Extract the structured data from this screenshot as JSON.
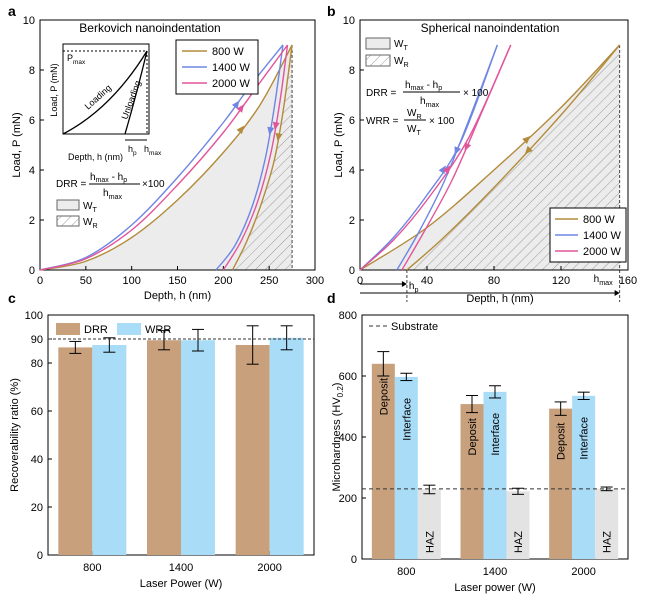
{
  "colors": {
    "c800": "#b38b3a",
    "c1400": "#6f86e3",
    "c2000": "#e2559b",
    "drr_bar": "#c8a07c",
    "wrr_bar": "#a9dcf7",
    "deposit_bar": "#c8a07c",
    "interface_bar": "#a9dcf7",
    "haz_bar": "#e3e3e3",
    "hatch": "#9a9a9a",
    "shade": "#ececec",
    "axis": "#000000"
  },
  "chart_data": [
    {
      "panel": "a",
      "type": "line",
      "title": "Berkovich nanoindentation",
      "xlabel": "Depth, h (nm)",
      "ylabel": "Load, P (mN)",
      "xlim": [
        0,
        300
      ],
      "ylim": [
        0,
        10
      ],
      "xticks": [
        "0",
        "50",
        "100",
        "150",
        "200",
        "250",
        "300"
      ],
      "yticks": [
        "0",
        "2",
        "4",
        "6",
        "8",
        "10"
      ],
      "legend_position": "top-right",
      "series": [
        {
          "name": "800 W",
          "loading": [
            [
              0,
              0
            ],
            [
              50,
              0.35
            ],
            [
              100,
              1.3
            ],
            [
              150,
              2.8
            ],
            [
              200,
              4.7
            ],
            [
              240,
              6.6
            ],
            [
              275,
              9.0
            ]
          ],
          "unloading": [
            [
              275,
              9.0
            ],
            [
              265,
              6.3
            ],
            [
              255,
              4.3
            ],
            [
              240,
              2.5
            ],
            [
              225,
              1.1
            ],
            [
              210,
              0
            ]
          ]
        },
        {
          "name": "1400 W",
          "loading": [
            [
              0,
              0
            ],
            [
              50,
              0.5
            ],
            [
              100,
              1.8
            ],
            [
              150,
              3.7
            ],
            [
              200,
              5.9
            ],
            [
              230,
              7.4
            ],
            [
              265,
              9.0
            ]
          ],
          "unloading": [
            [
              265,
              9.0
            ],
            [
              256,
              6.6
            ],
            [
              246,
              4.5
            ],
            [
              232,
              2.6
            ],
            [
              213,
              1.0
            ],
            [
              192,
              0
            ]
          ]
        },
        {
          "name": "2000 W",
          "loading": [
            [
              0,
              0
            ],
            [
              50,
              0.45
            ],
            [
              100,
              1.6
            ],
            [
              150,
              3.4
            ],
            [
              200,
              5.5
            ],
            [
              240,
              7.5
            ],
            [
              270,
              9.0
            ]
          ],
          "unloading": [
            [
              270,
              9.0
            ],
            [
              262,
              6.8
            ],
            [
              252,
              4.7
            ],
            [
              238,
              2.8
            ],
            [
              220,
              1.2
            ],
            [
              200,
              0
            ]
          ]
        }
      ],
      "inset": {
        "ylabel": "Load, P (mN)",
        "xlabel": "Depth, h (nm)",
        "pmax_label": "P",
        "pmax_sub": "max",
        "loading_label": "Loading",
        "unloading_label": "Unloading",
        "hp_label": "h",
        "hp_sub": "p",
        "hmax_label": "h",
        "hmax_sub": "max"
      },
      "formula": {
        "lhs": "DRR =",
        "num_a": "h",
        "num_a_sub": "max",
        "num_mid": " - h",
        "num_b_sub": "p",
        "den": "h",
        "den_sub": "max",
        "tail": "×100"
      },
      "area_legend": [
        {
          "key": "W",
          "sub": "T",
          "style": "shaded"
        },
        {
          "key": "W",
          "sub": "R",
          "style": "hatched"
        }
      ]
    },
    {
      "panel": "b",
      "type": "line",
      "title": "Spherical nanoindentation",
      "xlabel": "Depth, h (nm)",
      "ylabel": "Load, P (mN)",
      "xlim": [
        0,
        160
      ],
      "ylim": [
        0,
        10
      ],
      "xticks": [
        "0",
        "40",
        "80",
        "120",
        "160"
      ],
      "yticks": [
        "0",
        "2",
        "4",
        "6",
        "8",
        "10"
      ],
      "legend_position": "bottom-right",
      "series": [
        {
          "name": "800 W",
          "loading": [
            [
              0,
              0
            ],
            [
              40,
              1.7
            ],
            [
              80,
              4.0
            ],
            [
              120,
              6.5
            ],
            [
              155,
              9.0
            ]
          ],
          "unloading": [
            [
              155,
              9.0
            ],
            [
              120,
              6.2
            ],
            [
              80,
              3.3
            ],
            [
              50,
              1.3
            ],
            [
              28,
              0
            ]
          ]
        },
        {
          "name": "1400 W",
          "loading": [
            [
              0,
              0
            ],
            [
              20,
              1.3
            ],
            [
              40,
              3.0
            ],
            [
              60,
              5.1
            ],
            [
              82,
              9.0
            ]
          ],
          "unloading": [
            [
              82,
              9.0
            ],
            [
              65,
              6.0
            ],
            [
              50,
              3.5
            ],
            [
              35,
              1.5
            ],
            [
              22,
              0
            ]
          ]
        },
        {
          "name": "2000 W",
          "loading": [
            [
              0,
              0
            ],
            [
              20,
              1.2
            ],
            [
              40,
              2.8
            ],
            [
              65,
              5.3
            ],
            [
              90,
              9.0
            ]
          ],
          "unloading": [
            [
              90,
              9.0
            ],
            [
              72,
              6.2
            ],
            [
              55,
              3.6
            ],
            [
              38,
              1.5
            ],
            [
              25,
              0
            ]
          ]
        }
      ],
      "area_legend": [
        {
          "key": "W",
          "sub": "T",
          "style": "shaded"
        },
        {
          "key": "W",
          "sub": "R",
          "style": "hatched"
        }
      ],
      "formula_drr": {
        "lhs": "DRR =",
        "num_a": "h",
        "num_a_sub": "max",
        "num_mid": " - h",
        "num_b_sub": "p",
        "den": "h",
        "den_sub": "max",
        "tail": "× 100"
      },
      "formula_wrr": {
        "lhs": "WRR =",
        "num": "W",
        "num_sub": "R",
        "den": "W",
        "den_sub": "T",
        "tail": "× 100"
      },
      "hp_label": "h",
      "hp_sub": "p",
      "hmax_label": "h",
      "hmax_sub": "max"
    },
    {
      "panel": "c",
      "type": "bar",
      "xlabel": "Laser Power (W)",
      "ylabel": "Recoverability ratio (%)",
      "ylim": [
        0,
        100
      ],
      "yticks": [
        "0",
        "20",
        "40",
        "60",
        "80",
        "90",
        "100"
      ],
      "categories": [
        "800",
        "1400",
        "2000"
      ],
      "reference_line": 90,
      "legend_position": "top-left",
      "series": [
        {
          "name": "DRR",
          "values": [
            86.5,
            89.5,
            87.5
          ],
          "errors": [
            2.5,
            4.0,
            8.0
          ]
        },
        {
          "name": "WRR",
          "values": [
            87.5,
            89.5,
            90.5
          ],
          "errors": [
            3.0,
            4.5,
            5.0
          ]
        }
      ]
    },
    {
      "panel": "d",
      "type": "bar",
      "xlabel": "Laser power (W)",
      "ylabel": "Microhardness (HV",
      "ylabel_sub": "0.2",
      "ylabel_close": ")",
      "ylim": [
        0,
        800
      ],
      "yticks": [
        "0",
        "200",
        "400",
        "600",
        "800"
      ],
      "categories": [
        "800",
        "1400",
        "2000"
      ],
      "reference_line": 230,
      "reference_label": "Substrate",
      "legend_position": "top-left",
      "series": [
        {
          "name": "Deposit",
          "values": [
            640,
            508,
            493
          ],
          "errors": [
            40,
            28,
            22
          ]
        },
        {
          "name": "Interface",
          "values": [
            597,
            548,
            535
          ],
          "errors": [
            12,
            20,
            12
          ]
        },
        {
          "name": "HAZ",
          "values": [
            228,
            222,
            230
          ],
          "errors": [
            14,
            10,
            6
          ]
        }
      ]
    }
  ],
  "panel_letters": [
    "a",
    "b",
    "c",
    "d"
  ]
}
